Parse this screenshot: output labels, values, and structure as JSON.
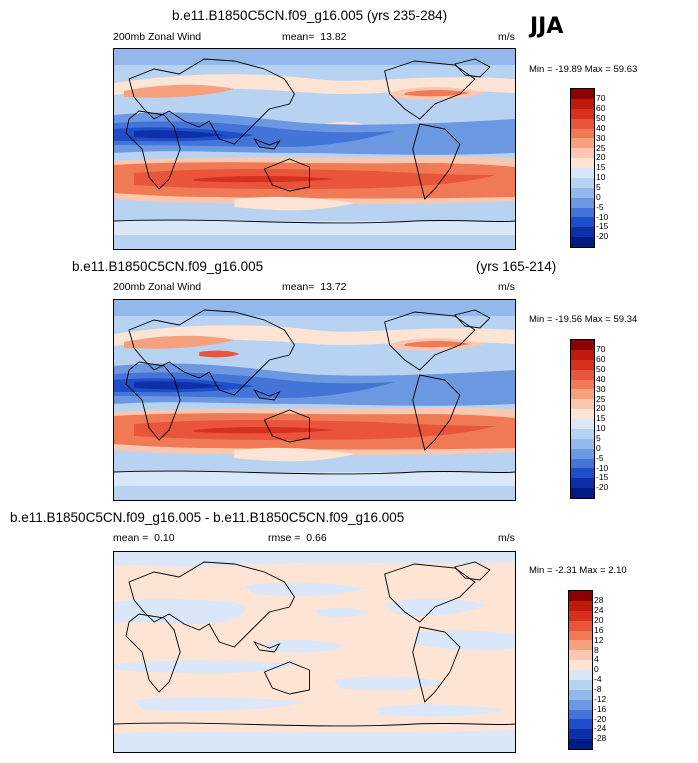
{
  "season_label": "JJA",
  "chart_data": [
    {
      "type": "heatmap",
      "title": "b.e11.B1850C5CN.f09_g16.005 (yrs 235-284)",
      "title_right": "",
      "variable": "200mb Zonal Wind",
      "mean_label": "mean=",
      "mean_value": "13.82",
      "units": "m/s",
      "minmax_text": "Min = -19.89 Max =  59.63",
      "min": -19.89,
      "max": 59.63,
      "colorbar_levels": [
        "70",
        "60",
        "50",
        "40",
        "30",
        "25",
        "20",
        "15",
        "10",
        "5",
        "0",
        "-5",
        "-10",
        "-15",
        "-20"
      ],
      "colorbar_colors": [
        "#8b0000",
        "#bf1a0c",
        "#d7301f",
        "#e8553a",
        "#f07a55",
        "#f6a07e",
        "#fbc7ae",
        "#fde4d4",
        "#d9e7f8",
        "#b8d3f2",
        "#93b8ec",
        "#6c98e2",
        "#4474d8",
        "#1f4fc8",
        "#0d2fa8",
        "#021b80"
      ]
    },
    {
      "type": "heatmap",
      "title": "b.e11.B1850C5CN.f09_g16.005",
      "title_right": "(yrs 165-214)",
      "variable": "200mb Zonal Wind",
      "mean_label": "mean=",
      "mean_value": "13.72",
      "units": "m/s",
      "minmax_text": "Min = -19.56 Max =  59.34",
      "min": -19.56,
      "max": 59.34,
      "colorbar_levels": [
        "70",
        "60",
        "50",
        "40",
        "30",
        "25",
        "20",
        "15",
        "10",
        "5",
        "0",
        "-5",
        "-10",
        "-15",
        "-20"
      ],
      "colorbar_colors": [
        "#8b0000",
        "#bf1a0c",
        "#d7301f",
        "#e8553a",
        "#f07a55",
        "#f6a07e",
        "#fbc7ae",
        "#fde4d4",
        "#d9e7f8",
        "#b8d3f2",
        "#93b8ec",
        "#6c98e2",
        "#4474d8",
        "#1f4fc8",
        "#0d2fa8",
        "#021b80"
      ]
    },
    {
      "type": "heatmap",
      "title": "b.e11.B1850C5CN.f09_g16.005 - b.e11.B1850C5CN.f09_g16.005",
      "title_right": "",
      "variable": "",
      "mean_label": "mean =",
      "mean_value": "0.10",
      "rmse_label": "rmse =",
      "rmse_value": "0.66",
      "units": "m/s",
      "minmax_text": "Min =  -2.31 Max =   2.10",
      "min": -2.31,
      "max": 2.1,
      "colorbar_levels": [
        "28",
        "24",
        "20",
        "16",
        "12",
        "8",
        "4",
        "0",
        "-4",
        "-8",
        "-12",
        "-16",
        "-20",
        "-24",
        "-28"
      ],
      "colorbar_colors": [
        "#8b0000",
        "#bf1a0c",
        "#d7301f",
        "#e8553a",
        "#f07a55",
        "#f6a07e",
        "#fbc7ae",
        "#fde4d4",
        "#d9e7f8",
        "#b8d3f2",
        "#93b8ec",
        "#6c98e2",
        "#4474d8",
        "#1f4fc8",
        "#0d2fa8",
        "#021b80"
      ]
    }
  ]
}
